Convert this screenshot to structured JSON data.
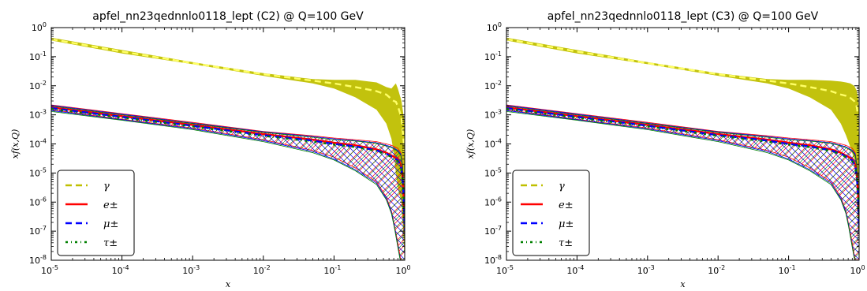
{
  "chart_data": [
    {
      "type": "line",
      "title": "apfel_nn23qednnlo0118_lept (C2) @ Q=100 GeV",
      "xlabel": "x",
      "ylabel": "xf(x,Q)",
      "xscale": "log",
      "yscale": "log",
      "xlim": [
        1e-05,
        1
      ],
      "ylim": [
        1e-08,
        1
      ],
      "xticks": [
        {
          "base": "10",
          "exp": "-5"
        },
        {
          "base": "10",
          "exp": "-4"
        },
        {
          "base": "10",
          "exp": "-3"
        },
        {
          "base": "10",
          "exp": "-2"
        },
        {
          "base": "10",
          "exp": "-1"
        },
        {
          "base": "10",
          "exp": "0"
        }
      ],
      "yticks": [
        {
          "base": "10",
          "exp": "-8"
        },
        {
          "base": "10",
          "exp": "-7"
        },
        {
          "base": "10",
          "exp": "-6"
        },
        {
          "base": "10",
          "exp": "-5"
        },
        {
          "base": "10",
          "exp": "-4"
        },
        {
          "base": "10",
          "exp": "-3"
        },
        {
          "base": "10",
          "exp": "-2"
        },
        {
          "base": "10",
          "exp": "-1"
        },
        {
          "base": "10",
          "exp": "0"
        }
      ],
      "legend_position": "lower-left",
      "series": [
        {
          "name": "γ",
          "color": "#bfbf00",
          "style": "dashed",
          "band": "filled",
          "x": [
            1e-05,
            0.0001,
            0.001,
            0.01,
            0.05,
            0.1,
            0.2,
            0.4,
            0.55,
            0.65,
            0.7,
            0.75,
            0.8,
            0.9,
            1.0
          ],
          "central": [
            0.4,
            0.15,
            0.06,
            0.025,
            0.015,
            0.012,
            0.009,
            0.0065,
            0.005,
            0.0035,
            0.003,
            0.0028,
            0.002,
            0.0008,
            5e-05
          ],
          "upper": [
            0.45,
            0.17,
            0.065,
            0.027,
            0.017,
            0.016,
            0.016,
            0.013,
            0.009,
            0.008,
            0.01,
            0.012,
            0.008,
            0.003,
            0.0005
          ],
          "lower": [
            0.36,
            0.13,
            0.055,
            0.022,
            0.012,
            0.008,
            0.004,
            0.0015,
            0.0005,
            0.00015,
            5e-05,
            1e-05,
            3e-06,
            1e-06,
            1e-08
          ]
        },
        {
          "name": "e±",
          "color": "#ff0000",
          "style": "solid",
          "x": [
            1e-05,
            0.0001,
            0.001,
            0.01,
            0.05,
            0.1,
            0.2,
            0.4,
            0.55,
            0.65,
            0.72,
            0.8,
            0.88,
            0.93,
            0.97,
            1.0
          ],
          "central": [
            0.0018,
            0.0009,
            0.00045,
            0.00022,
            0.00014,
            0.00011,
            9e-05,
            6.5e-05,
            5e-05,
            4e-05,
            3.5e-05,
            3e-05,
            2e-05,
            8e-06,
            1.5e-06,
            1e-07
          ],
          "upper": [
            0.0022,
            0.0011,
            0.00055,
            0.00027,
            0.00019,
            0.00016,
            0.00014,
            0.00012,
            0.0001,
            9e-05,
            8e-05,
            7e-05,
            5e-05,
            2e-05,
            3e-06,
            3e-07
          ],
          "lower": [
            0.0015,
            0.0007,
            0.00035,
            0.00014,
            6e-05,
            3.5e-05,
            1.5e-05,
            5e-06,
            1.5e-06,
            5e-07,
            1.5e-07,
            4e-08,
            1e-08,
            5e-09,
            2e-09,
            1e-09
          ]
        },
        {
          "name": "μ±",
          "color": "#0000ff",
          "style": "dashed",
          "x": [
            1e-05,
            0.0001,
            0.001,
            0.01,
            0.05,
            0.1,
            0.2,
            0.4,
            0.55,
            0.65,
            0.72,
            0.8,
            0.88,
            0.93,
            0.97,
            1.0
          ],
          "central": [
            0.0017,
            0.00085,
            0.00042,
            0.0002,
            0.00013,
            0.0001,
            8.2e-05,
            6e-05,
            4.6e-05,
            3.7e-05,
            3.2e-05,
            2.7e-05,
            1.8e-05,
            7e-06,
            1.3e-06,
            1e-07
          ],
          "upper": [
            0.0021,
            0.00105,
            0.00052,
            0.00026,
            0.00018,
            0.00015,
            0.00013,
            0.00011,
            9e-05,
            8e-05,
            7e-05,
            6e-05,
            4.5e-05,
            1.8e-05,
            2.8e-06,
            3e-07
          ],
          "lower": [
            0.0014,
            0.00068,
            0.00033,
            0.00013,
            5.5e-05,
            3e-05,
            1.3e-05,
            4.5e-06,
            1.3e-06,
            4.5e-07,
            1.3e-07,
            3e-08,
            8e-09,
            4e-09,
            2e-09,
            1e-09
          ]
        },
        {
          "name": "τ±",
          "color": "#008000",
          "style": "dashdot",
          "x": [
            1e-05,
            0.0001,
            0.001,
            0.01,
            0.05,
            0.1,
            0.2,
            0.4,
            0.55,
            0.65,
            0.72,
            0.8,
            0.88,
            0.93,
            0.97,
            1.0
          ],
          "central": [
            0.0016,
            0.0008,
            0.0004,
            0.00019,
            0.00012,
            9.5e-05,
            7.8e-05,
            5.7e-05,
            4.4e-05,
            3.5e-05,
            3e-05,
            2.5e-05,
            1.7e-05,
            6.5e-06,
            1.2e-06,
            1e-07
          ],
          "upper": [
            0.002,
            0.001,
            0.0005,
            0.00025,
            0.00017,
            0.00014,
            0.000125,
            0.000105,
            8.5e-05,
            7.5e-05,
            6.5e-05,
            5.5e-05,
            4e-05,
            1.6e-05,
            2.5e-06,
            3e-07
          ],
          "lower": [
            0.0013,
            0.00065,
            0.00031,
            0.00012,
            5e-05,
            2.8e-05,
            1.2e-05,
            4e-06,
            1.2e-06,
            4e-07,
            1.2e-07,
            2.8e-08,
            8e-09,
            4e-09,
            2e-09,
            1e-09
          ]
        }
      ]
    },
    {
      "type": "line",
      "title": "apfel_nn23qednnlo0118_lept (C3) @ Q=100 GeV",
      "xlabel": "x",
      "ylabel": "xf(x,Q)",
      "xscale": "log",
      "yscale": "log",
      "xlim": [
        1e-05,
        1
      ],
      "ylim": [
        1e-08,
        1
      ],
      "xticks": [
        {
          "base": "10",
          "exp": "-5"
        },
        {
          "base": "10",
          "exp": "-4"
        },
        {
          "base": "10",
          "exp": "-3"
        },
        {
          "base": "10",
          "exp": "-2"
        },
        {
          "base": "10",
          "exp": "-1"
        },
        {
          "base": "10",
          "exp": "0"
        }
      ],
      "yticks": [
        {
          "base": "10",
          "exp": "-8"
        },
        {
          "base": "10",
          "exp": "-7"
        },
        {
          "base": "10",
          "exp": "-6"
        },
        {
          "base": "10",
          "exp": "-5"
        },
        {
          "base": "10",
          "exp": "-4"
        },
        {
          "base": "10",
          "exp": "-3"
        },
        {
          "base": "10",
          "exp": "-2"
        },
        {
          "base": "10",
          "exp": "-1"
        },
        {
          "base": "10",
          "exp": "0"
        }
      ],
      "legend_position": "lower-left",
      "series": [
        {
          "name": "γ",
          "color": "#bfbf00",
          "style": "dashed",
          "band": "filled",
          "x": [
            1e-05,
            0.0001,
            0.001,
            0.01,
            0.05,
            0.1,
            0.2,
            0.4,
            0.55,
            0.65,
            0.75,
            0.85,
            0.92,
            0.97,
            1.0
          ],
          "central": [
            0.4,
            0.15,
            0.06,
            0.025,
            0.015,
            0.012,
            0.009,
            0.0065,
            0.005,
            0.0045,
            0.0038,
            0.003,
            0.002,
            0.0009,
            0.0002
          ],
          "upper": [
            0.45,
            0.17,
            0.065,
            0.027,
            0.017,
            0.016,
            0.016,
            0.015,
            0.014,
            0.013,
            0.012,
            0.01,
            0.007,
            0.004,
            0.001
          ],
          "lower": [
            0.36,
            0.13,
            0.055,
            0.022,
            0.012,
            0.008,
            0.004,
            0.0015,
            0.0005,
            0.0002,
            8e-05,
            3e-05,
            1e-05,
            5e-06,
            1e-08
          ]
        },
        {
          "name": "e±",
          "color": "#ff0000",
          "style": "solid",
          "x": [
            1e-05,
            0.0001,
            0.001,
            0.01,
            0.05,
            0.1,
            0.2,
            0.4,
            0.55,
            0.65,
            0.72,
            0.8,
            0.88,
            0.93,
            0.97,
            1.0
          ],
          "central": [
            0.0018,
            0.0009,
            0.00045,
            0.00022,
            0.00014,
            0.00011,
            9e-05,
            6.5e-05,
            5e-05,
            4e-05,
            3.5e-05,
            3e-05,
            2e-05,
            8e-06,
            1.5e-06,
            1e-07
          ],
          "upper": [
            0.0022,
            0.0011,
            0.00055,
            0.00027,
            0.00019,
            0.00016,
            0.00014,
            0.00012,
            0.0001,
            9e-05,
            8e-05,
            7e-05,
            5e-05,
            2e-05,
            3e-06,
            3e-07
          ],
          "lower": [
            0.0015,
            0.0007,
            0.00035,
            0.00014,
            6e-05,
            3.5e-05,
            1.5e-05,
            5e-06,
            1.5e-06,
            5e-07,
            1.5e-07,
            4e-08,
            1e-08,
            5e-09,
            2e-09,
            1e-09
          ]
        },
        {
          "name": "μ±",
          "color": "#0000ff",
          "style": "dashed",
          "x": [
            1e-05,
            0.0001,
            0.001,
            0.01,
            0.05,
            0.1,
            0.2,
            0.4,
            0.55,
            0.65,
            0.72,
            0.8,
            0.88,
            0.93,
            0.97,
            1.0
          ],
          "central": [
            0.0017,
            0.00085,
            0.00042,
            0.0002,
            0.00013,
            0.0001,
            8.2e-05,
            6e-05,
            4.6e-05,
            3.7e-05,
            3.2e-05,
            2.7e-05,
            1.8e-05,
            7e-06,
            1.3e-06,
            1e-07
          ],
          "upper": [
            0.0021,
            0.00105,
            0.00052,
            0.00026,
            0.00018,
            0.00015,
            0.00013,
            0.00011,
            9e-05,
            8e-05,
            7e-05,
            6e-05,
            4.5e-05,
            1.8e-05,
            2.8e-06,
            3e-07
          ],
          "lower": [
            0.0014,
            0.00068,
            0.00033,
            0.00013,
            5.5e-05,
            3e-05,
            1.3e-05,
            4.5e-06,
            1.3e-06,
            4.5e-07,
            1.3e-07,
            3e-08,
            8e-09,
            4e-09,
            2e-09,
            1e-09
          ]
        },
        {
          "name": "τ±",
          "color": "#008000",
          "style": "dashdot",
          "x": [
            1e-05,
            0.0001,
            0.001,
            0.01,
            0.05,
            0.1,
            0.2,
            0.4,
            0.55,
            0.65,
            0.72,
            0.8,
            0.88,
            0.93,
            0.97,
            1.0
          ],
          "central": [
            0.0016,
            0.0008,
            0.0004,
            0.00019,
            0.00012,
            9.5e-05,
            7.8e-05,
            5.7e-05,
            4.4e-05,
            3.5e-05,
            3e-05,
            2.5e-05,
            1.7e-05,
            6.5e-06,
            1.2e-06,
            1e-07
          ],
          "upper": [
            0.002,
            0.001,
            0.0005,
            0.00025,
            0.00017,
            0.00014,
            0.000125,
            0.000105,
            8.5e-05,
            7.5e-05,
            6.5e-05,
            5.5e-05,
            4e-05,
            1.6e-05,
            2.5e-06,
            3e-07
          ],
          "lower": [
            0.0013,
            0.00065,
            0.00031,
            0.00012,
            5e-05,
            2.8e-05,
            1.2e-05,
            4e-06,
            1.2e-06,
            4e-07,
            1.2e-07,
            2.8e-08,
            8e-09,
            4e-09,
            2e-09,
            1e-09
          ]
        }
      ]
    }
  ]
}
